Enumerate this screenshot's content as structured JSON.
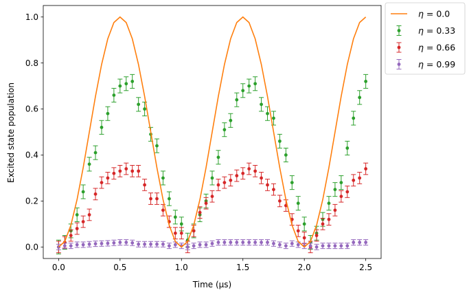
{
  "chart_data": {
    "type": "line",
    "xlabel": "Time (μs)",
    "ylabel": "Excited state population",
    "xlim": [
      -0.125,
      2.625
    ],
    "ylim": [
      -0.05,
      1.05
    ],
    "xticks": [
      0.0,
      0.5,
      1.0,
      1.5,
      2.0,
      2.5
    ],
    "xtick_labels": [
      "0.0",
      "0.5",
      "1.0",
      "1.5",
      "2.0",
      "2.5"
    ],
    "yticks": [
      0.0,
      0.2,
      0.4,
      0.6,
      0.8,
      1.0
    ],
    "ytick_labels": [
      "0.0",
      "0.2",
      "0.4",
      "0.6",
      "0.8",
      "1.0"
    ],
    "grid": false,
    "legend_position": "outside-top-right",
    "x": [
      0.0,
      0.05,
      0.1,
      0.15,
      0.2,
      0.25,
      0.3,
      0.35,
      0.4,
      0.45,
      0.5,
      0.55,
      0.6,
      0.65,
      0.7,
      0.75,
      0.8,
      0.85,
      0.9,
      0.95,
      1.0,
      1.05,
      1.1,
      1.15,
      1.2,
      1.25,
      1.3,
      1.35,
      1.4,
      1.45,
      1.5,
      1.55,
      1.6,
      1.65,
      1.7,
      1.75,
      1.8,
      1.85,
      1.9,
      1.95,
      2.0,
      2.05,
      2.1,
      2.15,
      2.2,
      2.25,
      2.3,
      2.35,
      2.4,
      2.45,
      2.5
    ],
    "series": [
      {
        "name_prefix": "η",
        "name_suffix": " = 0.0",
        "kind": "line",
        "color": "#ff7f0e",
        "values": [
          0.0,
          0.024,
          0.095,
          0.206,
          0.345,
          0.5,
          0.655,
          0.794,
          0.905,
          0.976,
          1.0,
          0.976,
          0.905,
          0.794,
          0.655,
          0.5,
          0.345,
          0.206,
          0.095,
          0.024,
          0.0,
          0.024,
          0.095,
          0.206,
          0.345,
          0.5,
          0.655,
          0.794,
          0.905,
          0.976,
          1.0,
          0.976,
          0.905,
          0.794,
          0.655,
          0.5,
          0.345,
          0.206,
          0.095,
          0.024,
          0.0,
          0.024,
          0.095,
          0.206,
          0.345,
          0.5,
          0.655,
          0.794,
          0.905,
          0.976,
          1.0
        ]
      },
      {
        "name_prefix": "η",
        "name_suffix": " = 0.33",
        "kind": "errorbar",
        "color": "#2ca02c",
        "error": 0.03,
        "values": [
          0.0,
          0.02,
          0.07,
          0.14,
          0.24,
          0.36,
          0.41,
          0.52,
          0.58,
          0.66,
          0.7,
          0.71,
          0.72,
          0.62,
          0.6,
          0.49,
          0.44,
          0.3,
          0.21,
          0.13,
          0.1,
          0.03,
          0.07,
          0.14,
          0.2,
          0.3,
          0.39,
          0.51,
          0.55,
          0.64,
          0.68,
          0.7,
          0.71,
          0.62,
          0.58,
          0.56,
          0.46,
          0.4,
          0.28,
          0.19,
          0.1,
          0.02,
          0.06,
          0.12,
          0.19,
          0.25,
          0.28,
          0.43,
          0.56,
          0.65,
          0.72
        ]
      },
      {
        "name_prefix": "η",
        "name_suffix": " = 0.66",
        "kind": "errorbar",
        "color": "#d62728",
        "error": 0.025,
        "values": [
          0.0,
          0.02,
          0.05,
          0.08,
          0.11,
          0.14,
          0.23,
          0.28,
          0.3,
          0.32,
          0.33,
          0.34,
          0.33,
          0.33,
          0.27,
          0.21,
          0.21,
          0.16,
          0.11,
          0.06,
          0.06,
          0.0,
          0.07,
          0.15,
          0.19,
          0.22,
          0.27,
          0.28,
          0.29,
          0.31,
          0.32,
          0.34,
          0.33,
          0.3,
          0.27,
          0.25,
          0.2,
          0.18,
          0.12,
          0.07,
          0.04,
          0.0,
          0.05,
          0.1,
          0.12,
          0.16,
          0.22,
          0.24,
          0.29,
          0.3,
          0.34
        ]
      },
      {
        "name_prefix": "η",
        "name_suffix": " = 0.99",
        "kind": "errorbar",
        "color": "#9467bd",
        "error": 0.012,
        "values": [
          0.0,
          0.005,
          0.005,
          0.01,
          0.01,
          0.012,
          0.014,
          0.015,
          0.016,
          0.018,
          0.02,
          0.02,
          0.018,
          0.012,
          0.012,
          0.012,
          0.012,
          0.012,
          0.005,
          0.01,
          0.005,
          0.0,
          0.005,
          0.01,
          0.01,
          0.015,
          0.02,
          0.02,
          0.02,
          0.02,
          0.02,
          0.02,
          0.02,
          0.02,
          0.02,
          0.015,
          0.01,
          0.005,
          0.015,
          0.01,
          0.005,
          0.005,
          0.0,
          0.005,
          0.005,
          0.005,
          0.005,
          0.005,
          0.02,
          0.02,
          0.02
        ]
      }
    ]
  }
}
